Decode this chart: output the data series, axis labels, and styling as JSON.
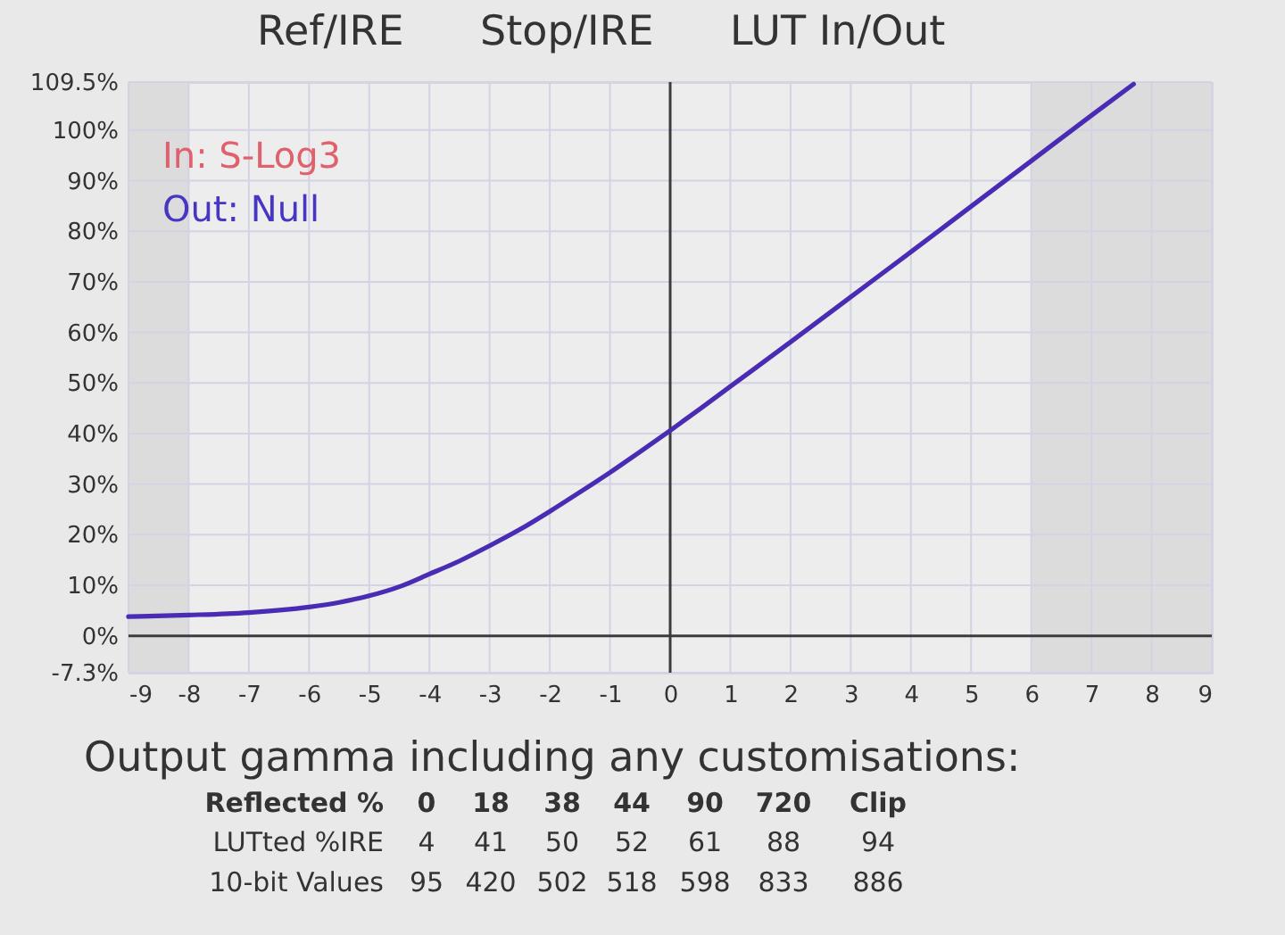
{
  "chart_data": {
    "type": "line",
    "annotations": [
      "Ref/IRE",
      "Stop/IRE",
      "LUT In/Out",
      "In: S-Log3",
      "Out: Null",
      "Output gamma including any customisations:",
      "Reflected %",
      "0",
      "18",
      "38",
      "44",
      "90",
      "720",
      "Clip",
      "LUTted %IRE",
      "4",
      "41",
      "50",
      "52",
      "61",
      "88",
      "94",
      "10-bit Values",
      "95",
      "420",
      "502",
      "518",
      "598",
      "833",
      "886"
    ],
    "x": [
      -9,
      -8,
      -7,
      -6,
      -5.5,
      -5,
      -4.5,
      -4,
      -3.5,
      -3,
      -2.5,
      -2,
      -1.5,
      -1,
      -0.5,
      0,
      0.5,
      1,
      2,
      3,
      4,
      5,
      6,
      7,
      7.7
    ],
    "series": [
      {
        "color": "#4a2cb4",
        "values": [
          3.8,
          4.1,
          4.6,
          5.7,
          6.6,
          7.9,
          9.7,
          12.2,
          14.8,
          17.8,
          21.0,
          24.6,
          28.4,
          32.3,
          36.4,
          40.6,
          44.9,
          49.3,
          58.1,
          67.0,
          75.9,
          84.9,
          93.9,
          102.9,
          109.1
        ]
      }
    ],
    "xlim": [
      -9,
      9
    ],
    "ylim": [
      -7.3,
      109.5
    ],
    "xticks": [
      -9,
      -8,
      -7,
      -6,
      -5,
      -4,
      -3,
      -2,
      -1,
      0,
      1,
      2,
      3,
      4,
      5,
      6,
      7,
      8,
      9
    ],
    "yticks": [
      {
        "value": -7.3,
        "label": "-7.3%"
      },
      {
        "value": 0,
        "label": "0%"
      },
      {
        "value": 10,
        "label": "10%"
      },
      {
        "value": 20,
        "label": "20%"
      },
      {
        "value": 30,
        "label": "30%"
      },
      {
        "value": 40,
        "label": "40%"
      },
      {
        "value": 50,
        "label": "50%"
      },
      {
        "value": 60,
        "label": "60%"
      },
      {
        "value": 70,
        "label": "70%"
      },
      {
        "value": 80,
        "label": "80%"
      },
      {
        "value": 90,
        "label": "90%"
      },
      {
        "value": 100,
        "label": "100%"
      },
      {
        "value": 109.5,
        "label": "109.5%"
      }
    ],
    "grid": true,
    "bands": [
      {
        "axis": "x",
        "from": -9,
        "to": -8,
        "color": "#dcdcdc"
      },
      {
        "axis": "x",
        "from": 6,
        "to": 9,
        "color": "#dcdcdc"
      }
    ]
  }
}
